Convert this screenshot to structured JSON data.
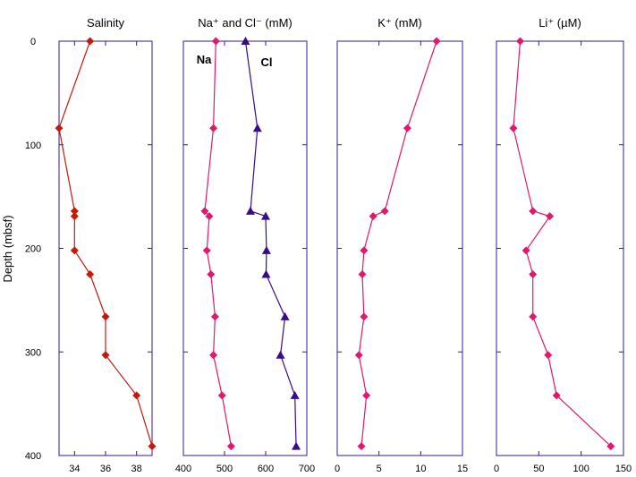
{
  "ylabel": "Depth (mbsf)",
  "y_ticks": [
    0,
    100,
    200,
    300,
    400
  ],
  "ylim": [
    0,
    400
  ],
  "y_inverted": true,
  "colors": {
    "axis": "#3a1a8c",
    "salinity": "#c41a0a",
    "na": "#e0186e",
    "cl": "#3a0a8c",
    "k": "#e0186e",
    "li": "#e0186e",
    "text": "#000000"
  },
  "chart_data": [
    {
      "type": "line",
      "title": "Salinity",
      "xlim": [
        33,
        39
      ],
      "x_ticks": [
        34,
        36,
        38
      ],
      "grid": false,
      "series": [
        {
          "marker": "diamond",
          "color": "#c41a0a",
          "x": [
            35,
            33,
            34,
            34,
            34,
            35,
            36,
            36,
            38,
            39
          ],
          "y": [
            0,
            84,
            164,
            169,
            202,
            225,
            266,
            303,
            342,
            391
          ]
        }
      ]
    },
    {
      "type": "line",
      "title": "Na⁺ and Cl⁻ (mM)",
      "xlim": [
        400,
        700
      ],
      "x_ticks": [
        400,
        500,
        600,
        700
      ],
      "grid": false,
      "annotations": [
        "Na",
        "Cl"
      ],
      "series": [
        {
          "name": "Na",
          "marker": "diamond",
          "color": "#e0186e",
          "x": [
            479,
            473,
            452,
            463,
            457,
            467,
            477,
            473,
            494,
            516
          ],
          "y": [
            0,
            84,
            164,
            169,
            202,
            225,
            266,
            303,
            342,
            391
          ]
        },
        {
          "name": "Cl",
          "marker": "triangle",
          "color": "#3a0a8c",
          "x": [
            551,
            580,
            563,
            600,
            602,
            601,
            647,
            636,
            671,
            674
          ],
          "y": [
            0,
            84,
            164,
            169,
            202,
            225,
            266,
            303,
            342,
            391
          ]
        }
      ]
    },
    {
      "type": "line",
      "title": "K⁺ (mM)",
      "xlim": [
        0,
        15
      ],
      "x_ticks": [
        0,
        5,
        10,
        15
      ],
      "grid": false,
      "series": [
        {
          "marker": "diamond",
          "color": "#e0186e",
          "x": [
            11.9,
            8.4,
            5.7,
            4.3,
            3.2,
            3.0,
            3.2,
            2.6,
            3.5,
            2.9
          ],
          "y": [
            0,
            84,
            164,
            169,
            202,
            225,
            266,
            303,
            342,
            391
          ]
        }
      ]
    },
    {
      "type": "line",
      "title": "Li⁺ (µM)",
      "xlim": [
        0,
        150
      ],
      "x_ticks": [
        0,
        50,
        100,
        150
      ],
      "grid": false,
      "series": [
        {
          "marker": "diamond",
          "color": "#e0186e",
          "x": [
            28,
            20,
            43,
            63,
            35,
            43,
            43,
            61,
            71,
            135
          ],
          "y": [
            0,
            84,
            164,
            169,
            202,
            225,
            266,
            303,
            342,
            391
          ]
        }
      ]
    }
  ]
}
